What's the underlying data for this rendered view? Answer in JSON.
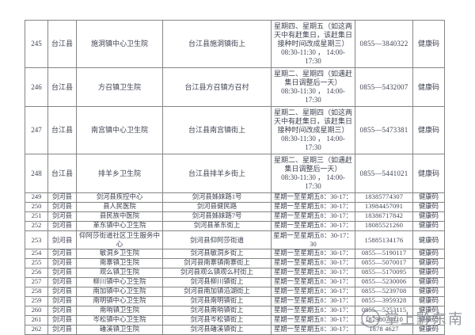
{
  "watermark": {
    "text": "掌上黔东南",
    "color": "#7d838a"
  },
  "table": {
    "rows": [
      {
        "no": "245",
        "county": "台江县",
        "institution": "施洞镇中心卫生院",
        "address": "台江县施洞镇街上",
        "schedule": "星期四、星期五（如这两天中有赶集日，该赶集日接种时间改成星期三）\n08:30-11:30 ， 14:00-17:30",
        "phone": "0855—3840322",
        "code": "健康码"
      },
      {
        "no": "246",
        "county": "台江县",
        "institution": "方召镇卫生院",
        "address": "台江县方召镇方召村",
        "schedule": "星期二、星期四（如遇赶集日调整后一天）\n08:30-11:30 ， 14:00-17:30",
        "phone": "0855—5432007",
        "code": "健康码"
      },
      {
        "no": "247",
        "county": "台江县",
        "institution": "南宫镇中心卫生院",
        "address": "台江县南宫镇街上",
        "schedule": "星期二、星期四（如这两天中有赶集日，该赶集日接种时间改成星期三）\n08:30-11:30 ， 14:00-17:30",
        "phone": "0855—5473381",
        "code": "健康码"
      },
      {
        "no": "248",
        "county": "台江县",
        "institution": "排羊乡卫生院",
        "address": "台江县排羊乡街上",
        "schedule": "星期二、星期三（如遇赶集日调整后一天）\n08:30-11:30 ， 14:00-17:30",
        "phone": "0855—5441021",
        "code": "健康码"
      },
      {
        "no": "249",
        "county": "剑河县",
        "institution": "剑河县疾控中心",
        "address": "剑河县姊妹路1号",
        "schedule": "星期一至星期五8：30-17：",
        "phone": "18385774307",
        "code": "健康码"
      },
      {
        "no": "250",
        "county": "剑河县",
        "institution": "县人民医院",
        "address": "剑河县健民路",
        "schedule": "星期一至星期五8：30-17：",
        "phone": "13984457091",
        "code": "健康码"
      },
      {
        "no": "251",
        "county": "剑河县",
        "institution": "县民族中医院",
        "address": "剑河县姊妹路7号",
        "schedule": "星期一至星期五8：30-17：",
        "phone": "18386717842",
        "code": "健康码"
      },
      {
        "no": "252",
        "county": "剑河县",
        "institution": "革东镇中心卫生院",
        "address": "剑河县革东街上",
        "schedule": "星期一至星期五8：30-17：",
        "phone": "18085521260",
        "code": "健康码"
      },
      {
        "no": "253",
        "county": "剑河县",
        "institution": "仰阿莎街道社区卫生服务中心",
        "address": "剑河县仰阿莎街道",
        "schedule": "星期一至星期五8：30-17：30",
        "phone": "15885134176",
        "code": "健康码"
      },
      {
        "no": "254",
        "county": "剑河县",
        "institution": "敏洞乡卫生院",
        "address": "剑河县敏洞乡街上",
        "schedule": "星期一至星期五8：30-17：",
        "phone": "0855—5190117",
        "code": "健康码"
      },
      {
        "no": "255",
        "county": "剑河县",
        "institution": "南寨镇卫生院",
        "address": "剑河县南寨镇南寨街上",
        "schedule": "星期一至星期五8：30-17：",
        "phone": "0855—5070017",
        "code": "健康码"
      },
      {
        "no": "256",
        "county": "剑河县",
        "institution": "观么镇卫生院",
        "address": "剑河县观么镇观么村街上",
        "schedule": "星期一至星期五8：30-17：",
        "phone": "0855—5170095",
        "code": "健康码"
      },
      {
        "no": "257",
        "county": "剑河县",
        "institution": "柳川镇中心卫生院",
        "address": "剑河县柳川镇街上",
        "schedule": "星期一至星期五8：30-17：",
        "phone": "0855—5230006",
        "code": "健康码"
      },
      {
        "no": "258",
        "county": "剑河县",
        "institution": "南加镇中心卫生院",
        "address": "剑河县南加镇沿湖街上",
        "schedule": "星期一至星期五8：30-17：",
        "phone": "0855—5239708",
        "code": "健康码"
      },
      {
        "no": "259",
        "county": "剑河县",
        "institution": "南明镇中心卫生院",
        "address": "剑河县南明镇街上",
        "schedule": "星期一至星期五8：30-17：",
        "phone": "0855—3959328",
        "code": "健康码"
      },
      {
        "no": "260",
        "county": "剑河县",
        "institution": "南哨镇卫生院",
        "address": "剑河县南哨镇街上",
        "schedule": "星期一至星期五8：30-17：",
        "phone": "0855—5253115",
        "code": "健康码"
      },
      {
        "no": "261",
        "county": "剑河县",
        "institution": "岑松镇中心卫生院",
        "address": "剑河县岑松镇街上",
        "schedule": "星期一至星期五8：30-17：",
        "phone": "18798078110",
        "code": "健康码"
      },
      {
        "no": "262",
        "county": "剑河县",
        "institution": "磻溪镇卫生院",
        "address": "剑河县磻溪镇街上",
        "schedule": "星期一至星期五8：30-17：",
        "phone": "1878 4627",
        "code": "健康码"
      }
    ]
  }
}
